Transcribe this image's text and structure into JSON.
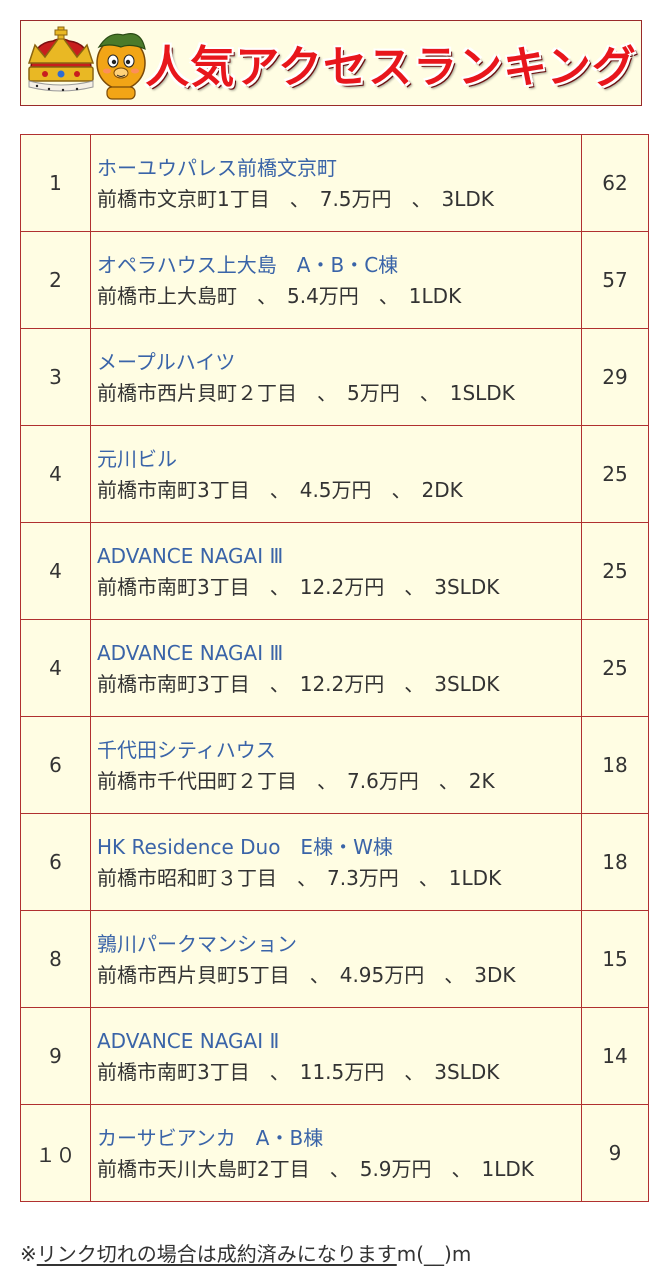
{
  "banner": {
    "title": "人気アクセスランキング",
    "colors": {
      "title": "#e8161c",
      "crown": "#d4a017",
      "crown_velvet": "#c81e1e",
      "mascot": "#f2a516"
    },
    "icons": [
      "crown-icon",
      "mascot-character"
    ]
  },
  "ranking": {
    "rows": [
      {
        "rank": "1",
        "name": "ホーユウパレス前橋文京町",
        "detail": "前橋市文京町1丁目　、　7.5万円　、　3LDK",
        "count": "62"
      },
      {
        "rank": "2",
        "name": "オペラハウス上大島　A・B・C棟",
        "detail": "前橋市上大島町　、　5.4万円　、　1LDK",
        "count": "57"
      },
      {
        "rank": "3",
        "name": "メープルハイツ",
        "detail": "前橋市西片貝町２丁目　、　5万円　、　1SLDK",
        "count": "29"
      },
      {
        "rank": "4",
        "name": "元川ビル",
        "detail": "前橋市南町3丁目　、　4.5万円　、　2DK",
        "count": "25"
      },
      {
        "rank": "4",
        "name": "ADVANCE NAGAI Ⅲ",
        "detail": "前橋市南町3丁目　、　12.2万円　、　3SLDK",
        "count": "25"
      },
      {
        "rank": "4",
        "name": "ADVANCE NAGAI Ⅲ",
        "detail": "前橋市南町3丁目　、　12.2万円　、　3SLDK",
        "count": "25"
      },
      {
        "rank": "6",
        "name": "千代田シティハウス",
        "detail": "前橋市千代田町２丁目　、　7.6万円　、　2K",
        "count": "18"
      },
      {
        "rank": "6",
        "name": "HK Residence Duo　E棟・W棟",
        "detail": "前橋市昭和町３丁目　、　7.3万円　、　1LDK",
        "count": "18"
      },
      {
        "rank": "8",
        "name": "鶉川パークマンション",
        "detail": "前橋市西片貝町5丁目　、　4.95万円　、　3DK",
        "count": "15"
      },
      {
        "rank": "9",
        "name": "ADVANCE NAGAI Ⅱ",
        "detail": "前橋市南町3丁目　、　11.5万円　、　3SLDK",
        "count": "14"
      },
      {
        "rank": "１０",
        "name": "カーサビアンカ　A・B棟",
        "detail": "前橋市天川大島町2丁目　、　5.9万円　、　1LDK",
        "count": "9"
      }
    ],
    "colors": {
      "border": "#b03030",
      "background": "#fffde3",
      "link": "#3a64a8",
      "text": "#333333"
    }
  },
  "footnote": {
    "mark": "※",
    "text": "リンク切れの場合は成約済みになります",
    "suffix": "m(__)m"
  }
}
